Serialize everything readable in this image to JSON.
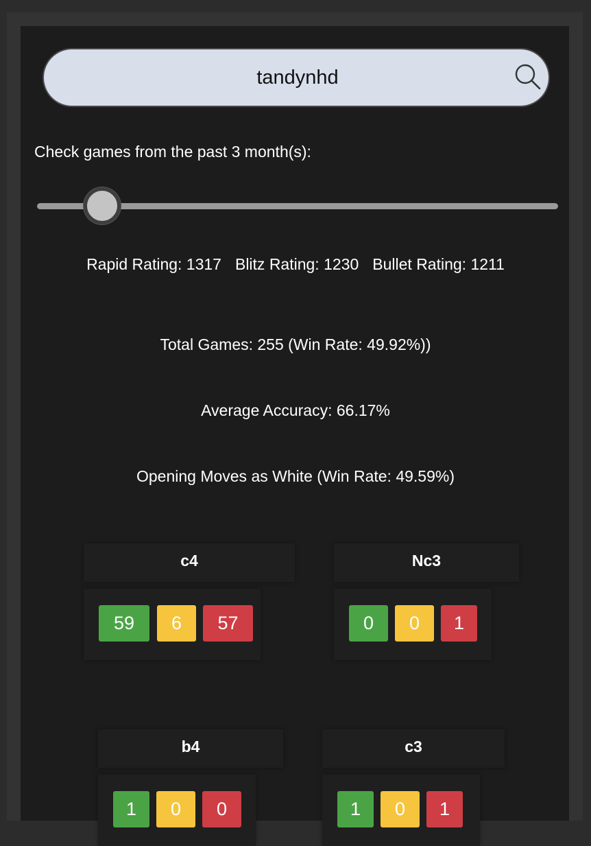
{
  "search": {
    "value": "tandynhd",
    "icon": "search-icon"
  },
  "months_label": "Check games from the past 3 month(s):",
  "slider": {
    "months": 3
  },
  "ratings": {
    "rapid": "Rapid Rating: 1317",
    "blitz": "Blitz Rating: 1230",
    "bullet": "Bullet Rating: 1211"
  },
  "total_games": "Total Games: 255 (Win Rate: 49.92%))",
  "average_accuracy": "Average Accuracy: 66.17%",
  "opening_white_title": "Opening Moves as White (Win Rate: 49.59%)",
  "openings": [
    {
      "move": "c4",
      "wins": "59",
      "draws": "6",
      "losses": "57"
    },
    {
      "move": "Nc3",
      "wins": "0",
      "draws": "0",
      "losses": "1"
    },
    {
      "move": "b4",
      "wins": "1",
      "draws": "0",
      "losses": "0"
    },
    {
      "move": "c3",
      "wins": "1",
      "draws": "0",
      "losses": "1"
    }
  ],
  "colors": {
    "win": "#4aa445",
    "draw": "#f6c43d",
    "loss": "#cf3e45",
    "search_bg": "#d8deea",
    "panel_bg": "#1c1c1c"
  }
}
